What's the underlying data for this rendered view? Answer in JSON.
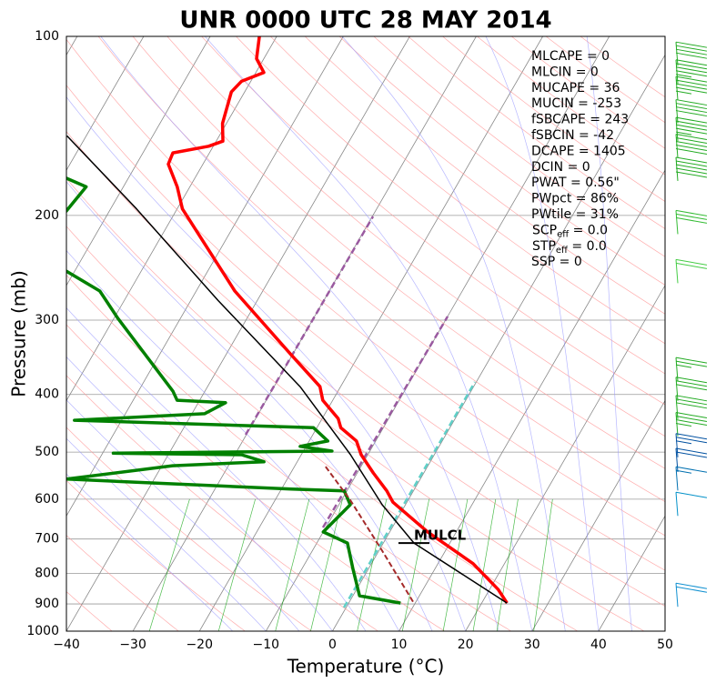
{
  "chart_data": {
    "type": "skewt",
    "title": "UNR 0000 UTC 28 MAY 2014",
    "x_label": "Temperature (°C)",
    "y_label": "Pressure (mb)",
    "xlim": [
      -40,
      50
    ],
    "ylim": [
      1000,
      100
    ],
    "log_y": true,
    "grid": true,
    "xticks": [
      {
        "value": -40,
        "label": "−40"
      },
      {
        "value": -30,
        "label": "−30"
      },
      {
        "value": -20,
        "label": "−20"
      },
      {
        "value": -10,
        "label": "−10"
      },
      0,
      10,
      20,
      30,
      40,
      50
    ],
    "yticks": [
      100,
      200,
      300,
      400,
      500,
      600,
      700,
      800,
      900,
      1000
    ],
    "series": [
      {
        "color": "#ff0000",
        "width": 3.5,
        "pressure": [
          897,
          851,
          770,
          681,
          607,
          581,
          542,
          505,
          479,
          455,
          439,
          409,
          388,
          343,
          268,
          195,
          179,
          164,
          157,
          153,
          150,
          140,
          124,
          119,
          115,
          109,
          100
        ],
        "values": [
          23.8,
          21.3,
          15.3,
          5.7,
          -2.1,
          -4.0,
          -7.6,
          -11.0,
          -12.9,
          -16.4,
          -17.6,
          -21.5,
          -23.1,
          -30.2,
          -44.2,
          -59.2,
          -61.9,
          -65.2,
          -65.5,
          -60.7,
          -59.0,
          -60.6,
          -62.0,
          -61.4,
          -58.8,
          -61.1,
          -62.6
        ]
      },
      {
        "color": "#008000",
        "width": 3.5,
        "pressure": [
          897,
          872,
          784,
          711,
          681,
          613,
          581,
          577,
          555,
          527,
          519,
          505,
          502,
          498,
          489,
          479,
          455,
          442,
          431,
          413,
          409,
          395,
          298,
          268,
          248,
          null,
          173,
          179,
          197
        ],
        "values": [
          7.8,
          1.0,
          -2.4,
          -5.4,
          -10.0,
          -8.3,
          -10.4,
          -18.5,
          -53.2,
          -38.4,
          -25.0,
          -29.0,
          -48.4,
          -15.7,
          -20.9,
          -17.2,
          -20.5,
          -57.1,
          -38.1,
          -35.9,
          -43.4,
          -44.8,
          -59.4,
          -64.5,
          -71.3,
          null,
          -79.4,
          -75.6,
          -76.5
        ]
      },
      {
        "color": "#000000",
        "width": 1.5,
        "pressure": [
          897,
          711,
          613,
          505,
          388,
          278,
          195,
          147
        ],
        "values": [
          23.8,
          4.6,
          -3.5,
          -12.6,
          -26.1,
          -45.9,
          -66.1,
          -82.9
        ]
      },
      {
        "color": "#a52a2a",
        "width": 2,
        "dash": "6,3",
        "pressure": [
          529,
          602,
          731,
          897
        ],
        "values": [
          -15.3,
          -8.7,
          0.4,
          9.8
        ]
      }
    ],
    "annotations": [
      {
        "text": "MULCL",
        "pressure": 711,
        "temperature": 4.6
      }
    ],
    "indices": [
      "MLCAPE = 0",
      "MLCIN = 0",
      "MUCAPE = 36",
      "MUCIN = -253",
      "fSBCAPE = 243",
      "fSBCIN = -42",
      "DCAPE = 1405",
      "DCIN = 0",
      "PWAT = 0.56\"",
      "PWpct = 86%",
      "PWtile = 31%",
      {
        "base": "SCP",
        "sub": "eff",
        "text": " = 0.0"
      },
      {
        "base": "STP",
        "sub": "eff",
        "text": " = 0.0"
      },
      "SSP = 0"
    ],
    "wind": {
      "pressure": [
        112,
        120,
        128,
        140,
        150,
        160,
        175,
        215,
        260,
        380,
        410,
        440,
        470,
        510,
        540,
        580,
        640,
        910
      ],
      "speed": [
        40,
        45,
        45,
        40,
        45,
        50,
        50,
        30,
        20,
        25,
        30,
        30,
        35,
        25,
        20,
        15,
        10,
        20
      ],
      "colors": [
        "#22aa22",
        "#22aa22",
        "#22aa22",
        "#22aa22",
        "#22aa22",
        "#22aa22",
        "#22aa22",
        "#33bb33",
        "#44cc44",
        "#22aa22",
        "#22aa22",
        "#22aa22",
        "#22aa22",
        "#0050a0",
        "#0050a0",
        "#0070b0",
        "#0090c8",
        "#1090d0"
      ]
    }
  }
}
